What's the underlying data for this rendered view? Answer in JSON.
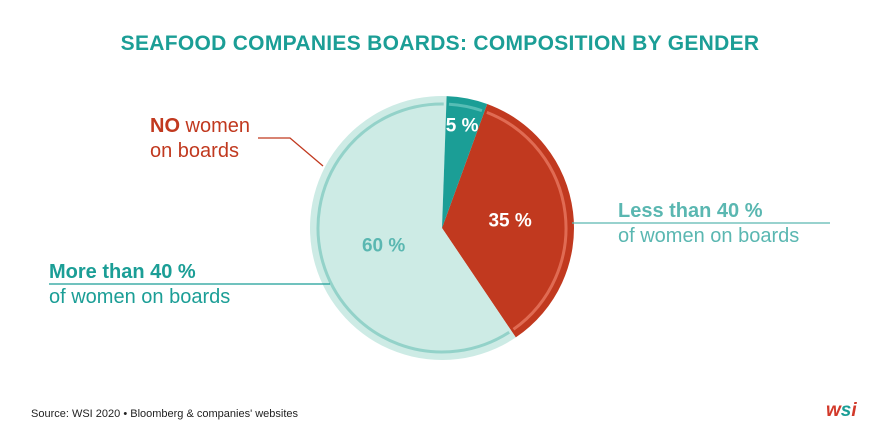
{
  "title": "SEAFOOD COMPANIES BOARDS: COMPOSITION BY GENDER",
  "chart_data": {
    "type": "pie",
    "title": "SEAFOOD COMPANIES BOARDS: COMPOSITION BY GENDER",
    "slices": [
      {
        "label": "NO women on boards",
        "value": 35,
        "display": "35 %",
        "color": "#c1391f",
        "label_color": "#ffffff"
      },
      {
        "label": "Less than 40 % of women on boards",
        "value": 60,
        "display": "60 %",
        "color": "#cdebe5",
        "label_color": "#5ab7b1"
      },
      {
        "label": "More than 40 % of women on boards",
        "value": 5,
        "display": "5 %",
        "color": "#1b9e96",
        "label_color": "#ffffff"
      }
    ]
  },
  "callouts": {
    "no_women": {
      "emph": "NO",
      "rest": " women",
      "line2": "on boards"
    },
    "less_than": {
      "line1": "Less than 40 %",
      "line2": "of women on boards"
    },
    "more_than": {
      "line1": "More than 40 %",
      "line2": "of women on boards"
    }
  },
  "source": "Source: WSI 2020 • Bloomberg & companies' websites",
  "logo": {
    "w": "w",
    "s": "s",
    "i": "i"
  },
  "colors": {
    "title": "#1b9e96",
    "red": "#c1391f",
    "light_teal": "#cdebe5",
    "teal": "#1b9e96"
  }
}
